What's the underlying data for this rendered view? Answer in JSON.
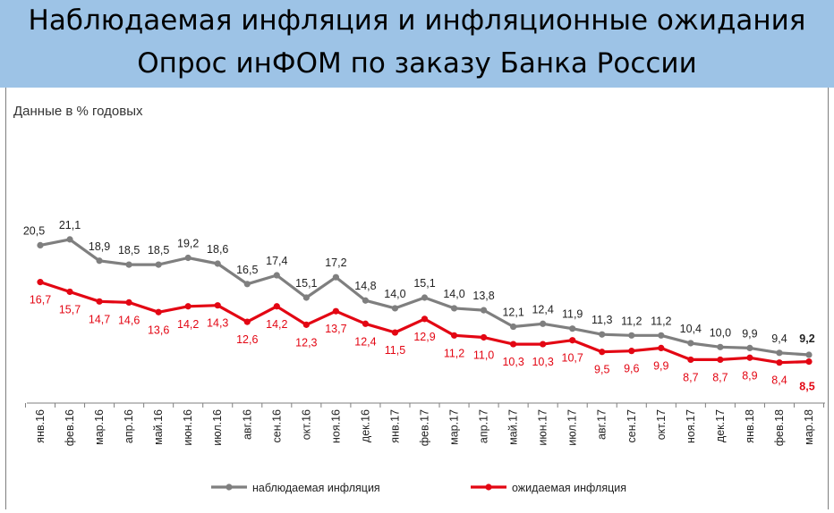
{
  "header": {
    "title_line1": "Наблюдаемая инфляция и инфляционные ожидания",
    "title_line2": "Опрос инФОМ по заказу Банка России"
  },
  "chart_data": {
    "type": "line",
    "units_label": "Данные в % годовых",
    "categories": [
      "янв.16",
      "фев.16",
      "мар.16",
      "апр.16",
      "май.16",
      "июн.16",
      "июл.16",
      "авг.16",
      "сен.16",
      "окт.16",
      "ноя.16",
      "дек.16",
      "янв.17",
      "фев.17",
      "мар.17",
      "апр.17",
      "май.17",
      "июн.17",
      "июл.17",
      "авг.17",
      "сен.17",
      "окт.17",
      "ноя.17",
      "дек.17",
      "янв.18",
      "фев.18",
      "мар.18"
    ],
    "series": [
      {
        "name": "наблюдаемая инфляция",
        "color": "#7f7f7f",
        "values": [
          20.5,
          21.1,
          18.9,
          18.5,
          18.5,
          19.2,
          18.6,
          16.5,
          17.4,
          15.1,
          17.2,
          14.8,
          14.0,
          15.1,
          14.0,
          13.8,
          12.1,
          12.4,
          11.9,
          11.3,
          11.2,
          11.2,
          10.4,
          10.0,
          9.9,
          9.4,
          9.2
        ],
        "labels": [
          "20,5",
          "21,1",
          "18,9",
          "18,5",
          "18,5",
          "19,2",
          "18,6",
          "16,5",
          "17,4",
          "15,1",
          "17,2",
          "14,8",
          "14,0",
          "15,1",
          "14,0",
          "13,8",
          "12,1",
          "12,4",
          "11,9",
          "11,3",
          "11,2",
          "11,2",
          "10,4",
          "10,0",
          "9,9",
          "9,4",
          "9,2"
        ]
      },
      {
        "name": "ожидаемая инфляция",
        "color": "#e30613",
        "values": [
          16.7,
          15.7,
          14.7,
          14.6,
          13.6,
          14.2,
          14.3,
          12.6,
          14.2,
          12.3,
          13.7,
          12.4,
          11.5,
          12.9,
          11.2,
          11.0,
          10.3,
          10.3,
          10.7,
          9.5,
          9.6,
          9.9,
          8.7,
          8.7,
          8.9,
          8.4,
          8.5
        ],
        "labels": [
          "16,7",
          "15,7",
          "14,7",
          "14,6",
          "13,6",
          "14,2",
          "14,3",
          "12,6",
          "14,2",
          "12,3",
          "13,7",
          "12,4",
          "11,5",
          "12,9",
          "11,2",
          "11,0",
          "10,3",
          "10,3",
          "10,7",
          "9,5",
          "9,6",
          "9,9",
          "8,7",
          "8,7",
          "8,9",
          "8,4",
          "8,5"
        ]
      }
    ],
    "legend_position": "bottom",
    "grid": false
  }
}
